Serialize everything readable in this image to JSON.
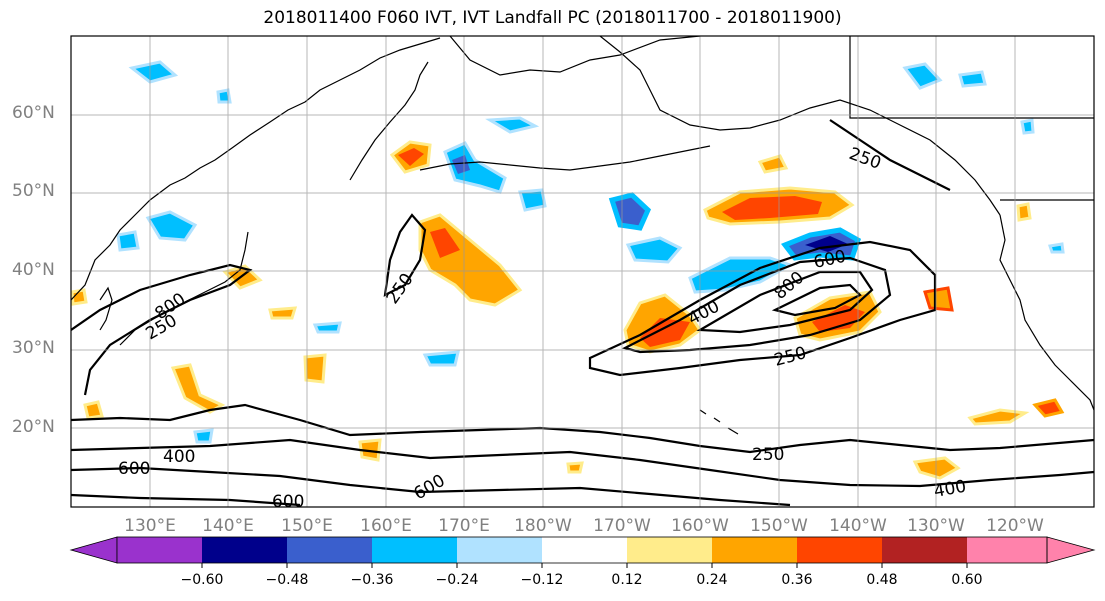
{
  "title": "2018011400 F060 IVT, IVT Landfall PC (2018011700 - 2018011900)",
  "lat_labels": [
    "60°N",
    "50°N",
    "40°N",
    "30°N",
    "20°N"
  ],
  "lon_labels": [
    "130°E",
    "140°E",
    "150°E",
    "160°E",
    "170°E",
    "180°W",
    "170°W",
    "160°W",
    "150°W",
    "140°W",
    "130°W",
    "120°W"
  ],
  "contour_labels": [
    "250",
    "250",
    "250",
    "250",
    "250",
    "400",
    "400",
    "400",
    "600",
    "600",
    "600",
    "600",
    "800",
    "800"
  ],
  "colorbar": {
    "ticks": [
      "−0.60",
      "−0.48",
      "−0.36",
      "−0.24",
      "−0.12",
      "0.12",
      "0.24",
      "0.36",
      "0.48",
      "0.60"
    ],
    "colors": [
      "#9a32cd",
      "#00008b",
      "#3a5fcd",
      "#00bfff",
      "#b0e2ff",
      "#ffffff",
      "#ffec8b",
      "#ffa500",
      "#ff4500",
      "#b22222",
      "#ff82ab"
    ]
  }
}
